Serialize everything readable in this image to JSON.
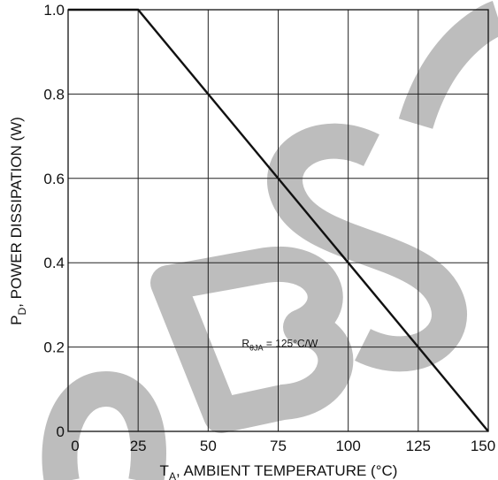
{
  "chart_data": {
    "type": "line",
    "xlabel": {
      "main": "T",
      "sub": "A",
      "rest": ", AMBIENT TEMPERATURE (°C)"
    },
    "ylabel": {
      "main": "P",
      "sub": "D",
      "rest": ",  POWER DISSIPATION (W)"
    },
    "xlim": [
      0,
      150
    ],
    "ylim": [
      0,
      1.0
    ],
    "x_ticks": [
      "0",
      "25",
      "50",
      "75",
      "100",
      "125",
      "150"
    ],
    "y_ticks": [
      "0",
      "0.2",
      "0.4",
      "0.6",
      "0.8",
      "1.0"
    ],
    "x_tick_values": [
      0,
      25,
      50,
      75,
      100,
      125,
      150
    ],
    "y_tick_values": [
      0,
      0.2,
      0.4,
      0.6,
      0.8,
      1.0
    ],
    "grid": true,
    "series": [
      {
        "x": [
          0,
          25,
          150
        ],
        "y": [
          1.0,
          1.0,
          0
        ]
      }
    ],
    "annotation": {
      "main": "R",
      "sub": "θJA",
      "rest": " = 125°C/W",
      "x": 62,
      "y": 0.2
    },
    "watermark": "OBSO"
  }
}
